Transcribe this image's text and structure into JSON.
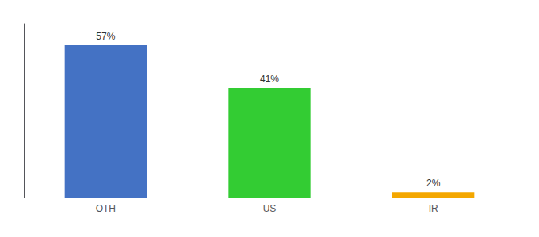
{
  "chart_data": {
    "type": "bar",
    "categories": [
      "OTH",
      "US",
      "IR"
    ],
    "values": [
      57,
      41,
      2
    ],
    "value_labels": [
      "57%",
      "41%",
      "2%"
    ],
    "colors": [
      "#4472c4",
      "#33cc33",
      "#f4a700"
    ],
    "ylim": [
      0,
      65
    ],
    "data_labels": true,
    "tick_labels": "x",
    "grid": false
  }
}
